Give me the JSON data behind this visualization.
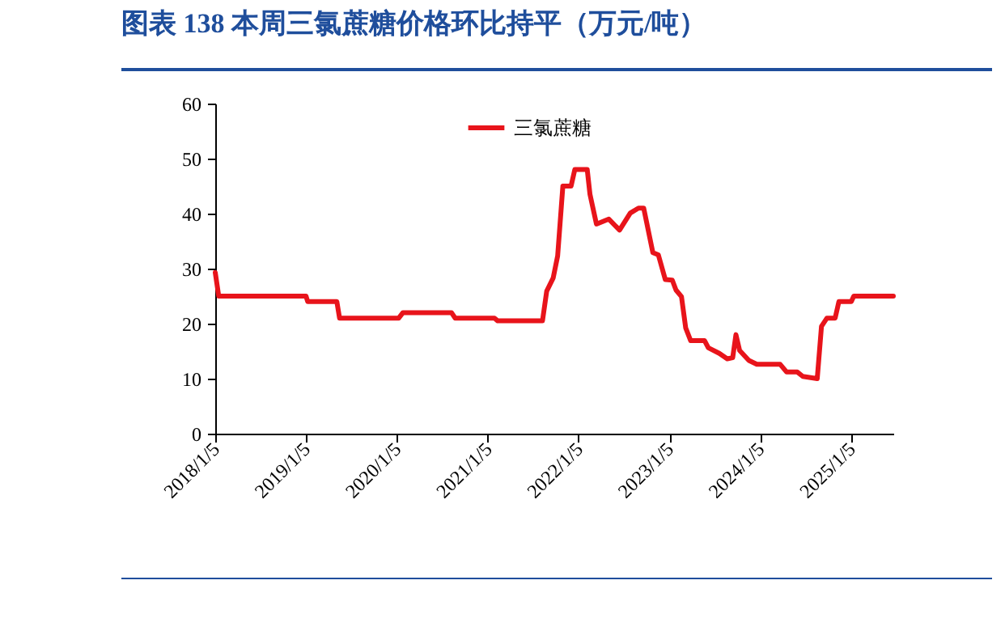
{
  "chart_data": {
    "type": "line",
    "title": "图表 138   本周三氯蔗糖价格环比持平（万元/吨）",
    "x": [
      "2018-01-05",
      "2018-01-19",
      "2019-01-05",
      "2019-01-12",
      "2019-05-09",
      "2019-05-20",
      "2020-01-13",
      "2020-01-30",
      "2020-08-12",
      "2020-08-27",
      "2021-02-01",
      "2021-02-14",
      "2021-08-13",
      "2021-08-30",
      "2021-09-25",
      "2021-10-13",
      "2021-11-03",
      "2021-12-06",
      "2021-12-21",
      "2022-02-09",
      "2022-02-20",
      "2022-03-18",
      "2022-05-07",
      "2022-06-19",
      "2022-08-01",
      "2022-09-03",
      "2022-09-24",
      "2022-10-31",
      "2022-11-22",
      "2022-12-20",
      "2023-01-17",
      "2023-02-01",
      "2023-02-23",
      "2023-03-12",
      "2023-04-01",
      "2023-05-27",
      "2023-06-11",
      "2023-07-25",
      "2023-08-26",
      "2023-09-17",
      "2023-09-30",
      "2023-10-15",
      "2023-11-21",
      "2023-12-23",
      "2024-03-26",
      "2024-04-21",
      "2024-06-03",
      "2024-06-25",
      "2024-08-22",
      "2024-09-08",
      "2024-09-30",
      "2024-11-02",
      "2024-11-17",
      "2025-01-06",
      "2025-01-16",
      "2025-06-24"
    ],
    "series": [
      {
        "name": "三氯蔗糖",
        "color": "#e8141b",
        "values": [
          29.3,
          25,
          25,
          24,
          24,
          21,
          21,
          22,
          22,
          21,
          21,
          20.5,
          20.5,
          25.9,
          28.3,
          32.3,
          45,
          45,
          48,
          48,
          43.5,
          38.1,
          39,
          37,
          40.1,
          41,
          41,
          32.9,
          32.5,
          28,
          27.9,
          26.1,
          24.9,
          19.2,
          16.9,
          16.9,
          15.6,
          14.6,
          13.6,
          13.8,
          18,
          15.1,
          13.3,
          12.6,
          12.6,
          11.2,
          11.2,
          10.4,
          10,
          19.5,
          21,
          21,
          24,
          24,
          25,
          25
        ]
      }
    ],
    "xlim": [
      "2018-01-05",
      "2025-06-24"
    ],
    "xticks": [
      {
        "value": "2018-01-05",
        "label": "2018/1/5"
      },
      {
        "value": "2019-01-05",
        "label": "2019/1/5"
      },
      {
        "value": "2020-01-05",
        "label": "2020/1/5"
      },
      {
        "value": "2021-01-05",
        "label": "2021/1/5"
      },
      {
        "value": "2022-01-05",
        "label": "2022/1/5"
      },
      {
        "value": "2023-01-05",
        "label": "2023/1/5"
      },
      {
        "value": "2024-01-05",
        "label": "2024/1/5"
      },
      {
        "value": "2025-01-05",
        "label": "2025/1/5"
      }
    ],
    "ylim": [
      0,
      60
    ],
    "yticks": [
      0,
      10,
      20,
      30,
      40,
      50,
      60
    ],
    "grid": false,
    "legend": "top",
    "marker": "none",
    "line_style": "solid"
  }
}
